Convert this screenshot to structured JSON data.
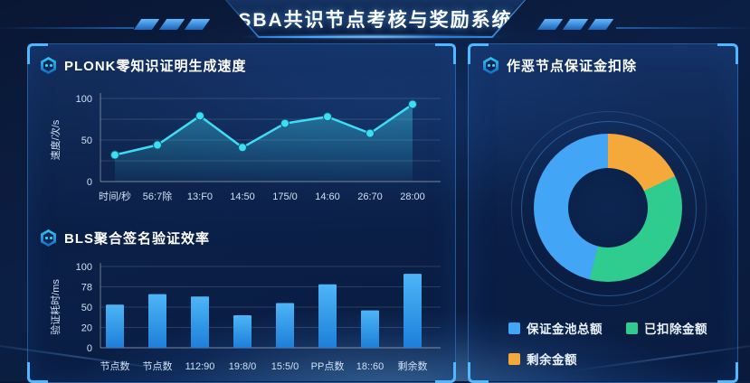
{
  "header": {
    "title": "SBA共识节点考核与奖励系统"
  },
  "panels": {
    "left": {
      "sections": [
        {
          "title": "PLONK零知识证明生成速度"
        },
        {
          "title": "BLS聚合签名验证效率"
        }
      ]
    },
    "right": {
      "title": "作恶节点保证金扣除"
    }
  },
  "colors": {
    "line": "#3edcf5",
    "bar_top": "#4db5f7",
    "bar_bottom": "#1d7fd9",
    "donut_blue": "#42a5f5",
    "donut_green": "#2ecc8e",
    "donut_orange": "#f5a93b",
    "axis_text": "#cfe0f5",
    "panel_border": "#3e87d7",
    "corner_accent": "#4fb8ff"
  },
  "chart_data": [
    {
      "type": "line",
      "title": "PLONK零知识证明生成速度",
      "ylabel": "速度/次/s",
      "categories": [
        "时间/秒",
        "56:7除",
        "13:F0",
        "14:50",
        "175/0",
        "14:60",
        "26:70",
        "28:00"
      ],
      "values": [
        32,
        44,
        79,
        41,
        70,
        78,
        58,
        93
      ],
      "yticks": [
        0,
        50,
        100
      ],
      "ylim": [
        0,
        100
      ],
      "grid": true,
      "legend_position": "none",
      "line_color": "#3edcf5",
      "marker": "circle",
      "area_fill": true
    },
    {
      "type": "bar",
      "title": "BLS聚合签名验证效率",
      "ylabel": "验证耗时/ms",
      "categories": [
        "节点数",
        "节点数",
        "112:90",
        "19:8/0",
        "15:5/0",
        "PP点数",
        "18::60",
        "剩余数"
      ],
      "values": [
        53,
        66,
        63,
        40,
        55,
        78,
        46,
        91
      ],
      "yticks": [
        0,
        20,
        50,
        78,
        100
      ],
      "ylim": [
        0,
        100
      ],
      "grid": true,
      "legend_position": "none",
      "bar_color_top": "#4db5f7",
      "bar_color_bottom": "#1d7fd9"
    },
    {
      "type": "pie",
      "subtype": "donut",
      "title": "作恶节点保证金扣除",
      "slices": [
        {
          "label": "保证金池总额",
          "value": 46,
          "color": "#42a5f5"
        },
        {
          "label": "已扣除金额",
          "value": 36,
          "color": "#2ecc8e"
        },
        {
          "label": "剩余金额",
          "value": 18,
          "color": "#f5a93b"
        }
      ],
      "draw_order_from_top_clockwise": [
        2,
        1,
        0
      ],
      "legend_position": "bottom"
    }
  ]
}
